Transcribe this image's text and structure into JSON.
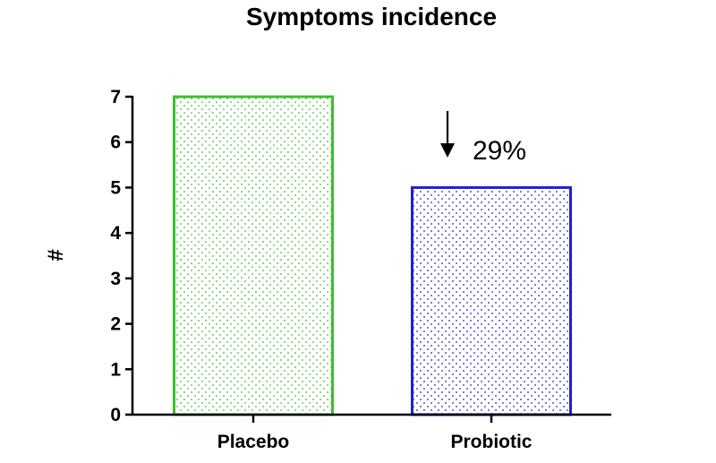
{
  "chart_data": {
    "type": "bar",
    "title": "Symptoms incidence",
    "xlabel": "",
    "ylabel": "#",
    "categories": [
      "Placebo",
      "Probiotic"
    ],
    "values": [
      7,
      5
    ],
    "ylim": [
      0,
      7
    ],
    "yticks": [
      "0",
      "1",
      "2",
      "3",
      "4",
      "5",
      "6",
      "7"
    ],
    "grid": false,
    "bar_colors": [
      "#3cbf2e",
      "#1f1fd6"
    ],
    "bar_fill": "dotted",
    "annotation": {
      "text": "29%",
      "arrow": "down",
      "category": "Probiotic"
    }
  }
}
